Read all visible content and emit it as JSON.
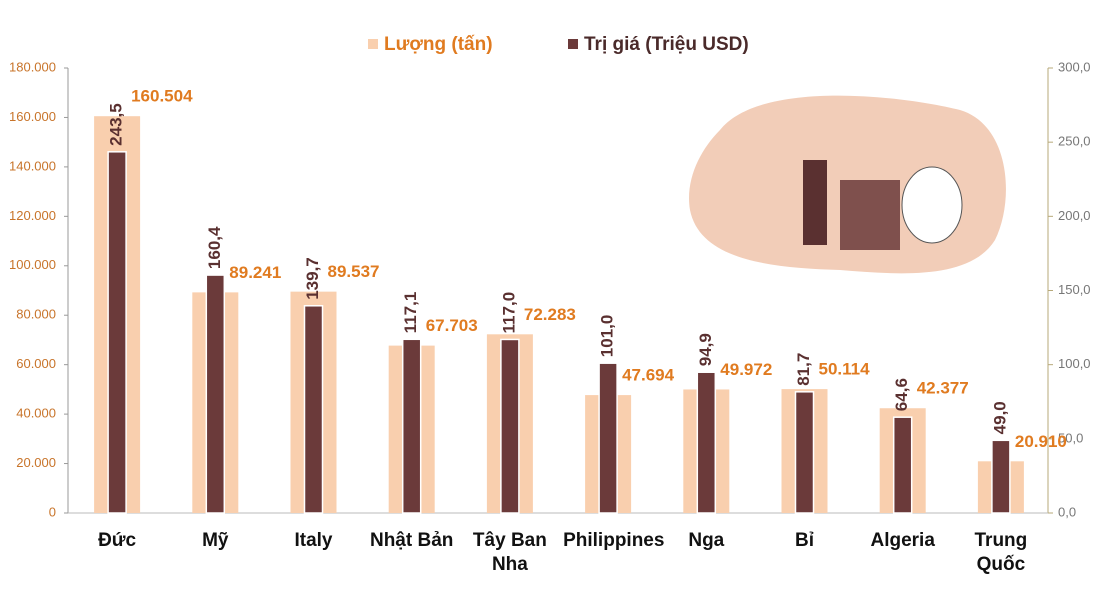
{
  "chart_data": {
    "type": "bar",
    "categories": [
      "Đức",
      "Mỹ",
      "Italy",
      "Nhật Bản",
      "Tây Ban Nha",
      "Philippines",
      "Nga",
      "Bỉ",
      "Algeria",
      "Trung Quốc"
    ],
    "series": [
      {
        "name": "Lượng (tấn)",
        "color": "#f9cfae",
        "values": [
          160504,
          89241,
          89537,
          67703,
          72283,
          47694,
          49972,
          50114,
          42377,
          20910
        ],
        "value_labels": [
          "160.504",
          "89.241",
          "89.537",
          "67.703",
          "72.283",
          "47.694",
          "49.972",
          "50.114",
          "42.377",
          "20.910"
        ]
      },
      {
        "name": "Trị giá (Triệu USD)",
        "color": "#6b3a3a",
        "axis": "y2",
        "values": [
          243.5,
          160.4,
          139.7,
          117.1,
          117.0,
          101.0,
          94.9,
          81.7,
          64.6,
          49.0
        ],
        "value_labels": [
          "243,5",
          "160,4",
          "139,7",
          "117,1",
          "117,0",
          "101,0",
          "94,9",
          "81,7",
          "64,6",
          "49,0"
        ]
      }
    ],
    "ylim": [
      0,
      180000
    ],
    "yticks": [
      0,
      {
        "value": 20000,
        "label": "20.000"
      },
      {
        "value": 40000,
        "label": "40.000"
      },
      {
        "value": 60000,
        "label": "60.000"
      },
      {
        "value": 80000,
        "label": "80.000"
      },
      {
        "value": 100000,
        "label": "100.000"
      },
      {
        "value": 120000,
        "label": "120.000"
      },
      {
        "value": 140000,
        "label": "140.000"
      },
      {
        "value": 160000,
        "label": "160.000"
      },
      {
        "value": 180000,
        "label": "180.000"
      }
    ],
    "y2lim": [
      0,
      300
    ],
    "y2ticks": [
      {
        "value": 0,
        "label": "0,0"
      },
      {
        "value": 50,
        "label": "50,0"
      },
      {
        "value": 100,
        "label": "100,0"
      },
      {
        "value": 150,
        "label": "150,0"
      },
      {
        "value": 200,
        "label": "200,0"
      },
      {
        "value": 250,
        "label": "250,0"
      },
      {
        "value": 300,
        "label": "300,0"
      }
    ],
    "legend": "top"
  }
}
